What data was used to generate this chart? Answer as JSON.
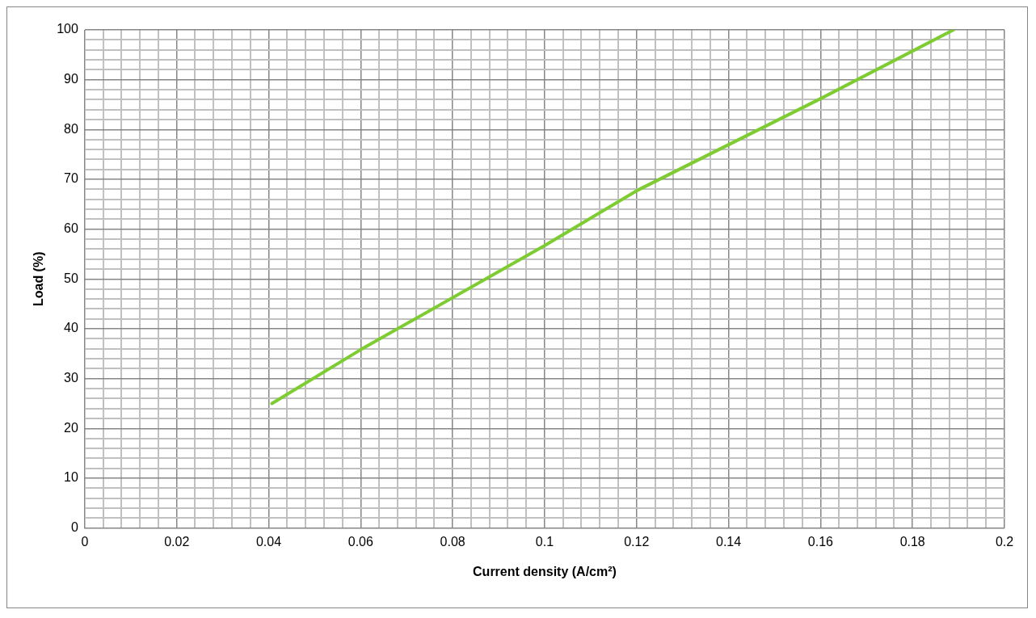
{
  "chart_data": {
    "type": "line",
    "xlabel": "Current density (A/cm²)",
    "ylabel": "Load (%)",
    "series": [
      {
        "color": "#7dcd32",
        "x": [
          0.0407,
          0.06,
          0.1,
          0.12,
          0.16,
          0.1889
        ],
        "values": [
          25,
          35.8,
          56.7,
          67.7,
          86.2,
          100
        ]
      }
    ],
    "xlim": [
      0,
      0.2
    ],
    "ylim": [
      0,
      100
    ],
    "xticks": [
      0,
      {
        "value": 0.004,
        "label": null
      },
      {
        "value": 0.008,
        "label": null
      },
      {
        "value": 0.012,
        "label": null
      },
      {
        "value": 0.016,
        "label": null
      },
      0.02,
      {
        "value": 0.024,
        "label": null
      },
      {
        "value": 0.028,
        "label": null
      },
      {
        "value": 0.032,
        "label": null
      },
      {
        "value": 0.036,
        "label": null
      },
      0.04,
      {
        "value": 0.044,
        "label": null
      },
      {
        "value": 0.048,
        "label": null
      },
      {
        "value": 0.052,
        "label": null
      },
      {
        "value": 0.056,
        "label": null
      },
      0.06,
      {
        "value": 0.064,
        "label": null
      },
      {
        "value": 0.068,
        "label": null
      },
      {
        "value": 0.072,
        "label": null
      },
      {
        "value": 0.076,
        "label": null
      },
      0.08,
      {
        "value": 0.084,
        "label": null
      },
      {
        "value": 0.088,
        "label": null
      },
      {
        "value": 0.092,
        "label": null
      },
      {
        "value": 0.096,
        "label": null
      },
      0.1,
      {
        "value": 0.104,
        "label": null
      },
      {
        "value": 0.108,
        "label": null
      },
      {
        "value": 0.112,
        "label": null
      },
      {
        "value": 0.116,
        "label": null
      },
      0.12,
      {
        "value": 0.124,
        "label": null
      },
      {
        "value": 0.128,
        "label": null
      },
      {
        "value": 0.132,
        "label": null
      },
      {
        "value": 0.136,
        "label": null
      },
      0.14,
      {
        "value": 0.144,
        "label": null
      },
      {
        "value": 0.148,
        "label": null
      },
      {
        "value": 0.152,
        "label": null
      },
      {
        "value": 0.156,
        "label": null
      },
      0.16,
      {
        "value": 0.164,
        "label": null
      },
      {
        "value": 0.168,
        "label": null
      },
      {
        "value": 0.172,
        "label": null
      },
      {
        "value": 0.176,
        "label": null
      },
      0.18,
      {
        "value": 0.184,
        "label": null
      },
      {
        "value": 0.188,
        "label": null
      },
      {
        "value": 0.192,
        "label": null
      },
      {
        "value": 0.196,
        "label": null
      },
      0.2
    ],
    "yticks": [
      0,
      {
        "value": 2,
        "label": null
      },
      {
        "value": 4,
        "label": null
      },
      {
        "value": 6,
        "label": null
      },
      {
        "value": 8,
        "label": null
      },
      10,
      {
        "value": 12,
        "label": null
      },
      {
        "value": 14,
        "label": null
      },
      {
        "value": 16,
        "label": null
      },
      {
        "value": 18,
        "label": null
      },
      20,
      {
        "value": 22,
        "label": null
      },
      {
        "value": 24,
        "label": null
      },
      {
        "value": 26,
        "label": null
      },
      {
        "value": 28,
        "label": null
      },
      30,
      {
        "value": 32,
        "label": null
      },
      {
        "value": 34,
        "label": null
      },
      {
        "value": 36,
        "label": null
      },
      {
        "value": 38,
        "label": null
      },
      40,
      {
        "value": 42,
        "label": null
      },
      {
        "value": 44,
        "label": null
      },
      {
        "value": 46,
        "label": null
      },
      {
        "value": 48,
        "label": null
      },
      50,
      {
        "value": 52,
        "label": null
      },
      {
        "value": 54,
        "label": null
      },
      {
        "value": 56,
        "label": null
      },
      {
        "value": 58,
        "label": null
      },
      60,
      {
        "value": 62,
        "label": null
      },
      {
        "value": 64,
        "label": null
      },
      {
        "value": 66,
        "label": null
      },
      {
        "value": 68,
        "label": null
      },
      70,
      {
        "value": 72,
        "label": null
      },
      {
        "value": 74,
        "label": null
      },
      {
        "value": 76,
        "label": null
      },
      {
        "value": 78,
        "label": null
      },
      80,
      {
        "value": 82,
        "label": null
      },
      {
        "value": 84,
        "label": null
      },
      {
        "value": 86,
        "label": null
      },
      {
        "value": 88,
        "label": null
      },
      90,
      {
        "value": 92,
        "label": null
      },
      {
        "value": 94,
        "label": null
      },
      {
        "value": 96,
        "label": null
      },
      {
        "value": 98,
        "label": null
      },
      100
    ],
    "grid": true,
    "legend": false,
    "marker": "none",
    "line_style": "solid"
  }
}
